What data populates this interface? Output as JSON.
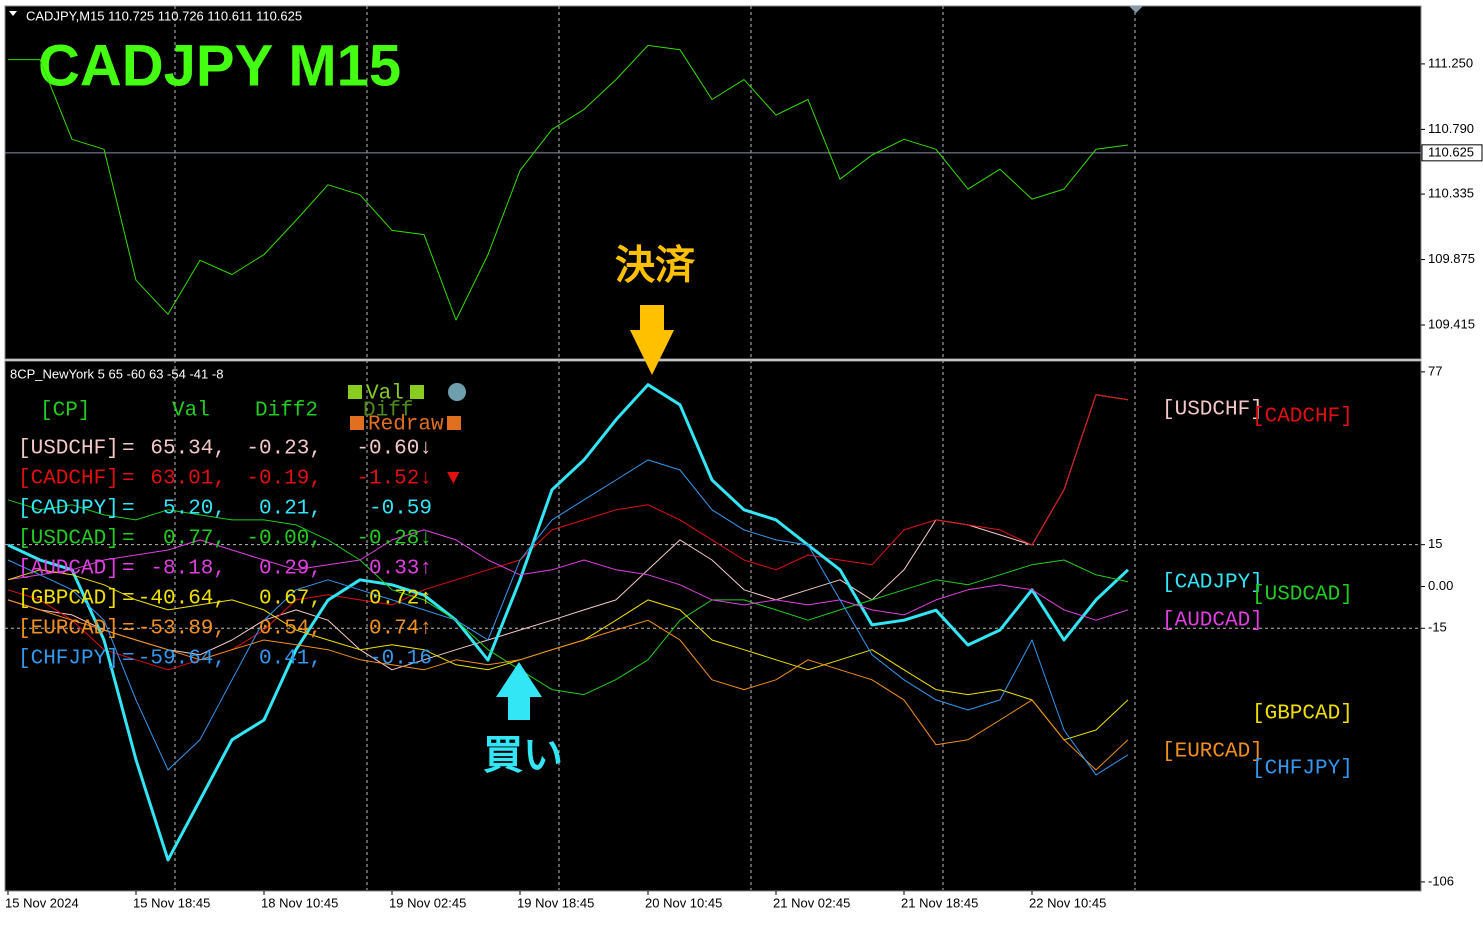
{
  "chart_data": [
    {
      "type": "line",
      "title": "CADJPY,M15  110.725 110.726 110.611 110.625",
      "annotation": "CADJPY  M15",
      "series": [
        {
          "name": "CADJPY",
          "color": "#33dd00",
          "width": 1,
          "values": [
            111.28,
            111.28,
            110.72,
            110.65,
            109.73,
            109.49,
            109.87,
            109.77,
            109.91,
            110.15,
            110.4,
            110.33,
            110.08,
            110.05,
            109.45,
            109.91,
            110.5,
            110.79,
            110.93,
            111.14,
            111.38,
            111.35,
            111.0,
            111.14,
            110.89,
            111.0,
            110.44,
            110.61,
            110.72,
            110.65,
            110.37,
            110.51,
            110.3,
            110.37,
            110.65,
            110.68
          ]
        }
      ],
      "last_price": 110.625,
      "ylim": [
        109.183,
        111.657
      ],
      "yticks": [
        109.415,
        109.875,
        110.335,
        {
          "value": 110.79,
          "label": "110.790"
        },
        {
          "value": 111.25,
          "label": "111.250"
        }
      ]
    },
    {
      "type": "line",
      "title": "8CP_NewYork 5 65 -60 63 -54 -41 -8",
      "categories": [
        "15 Nov 2024",
        null,
        null,
        null,
        "15 Nov 18:45",
        null,
        null,
        null,
        "18 Nov 10:45",
        null,
        null,
        null,
        "19 Nov 02:45",
        null,
        null,
        null,
        "19 Nov 18:45",
        null,
        null,
        null,
        "20 Nov 10:45",
        null,
        null,
        null,
        "21 Nov 02:45",
        null,
        null,
        null,
        "21 Nov 18:45",
        null,
        null,
        null,
        "22 Nov 10:45",
        null,
        null,
        null
      ],
      "ylim": [
        -108.9,
        80.9
      ],
      "yticks": [
        77,
        15,
        {
          "value": 0,
          "label": "0.00"
        },
        -15,
        -106
      ],
      "levels": [
        15,
        -15
      ],
      "series": [
        {
          "name": "[USDCHF]",
          "color": "#f5c8c8",
          "width": 1,
          "values": [
            -4.8,
            -8.4,
            -10.2,
            -15.6,
            -19.2,
            -22.7,
            -24.5,
            -19.2,
            -12.1,
            -8.4,
            -12.1,
            -22.7,
            -29.9,
            -26.3,
            -22.7,
            -19.2,
            -15.6,
            -12.1,
            -8.4,
            -4.8,
            6.0,
            16.7,
            9.5,
            -1.2,
            -4.8,
            -1.2,
            2.4,
            -4.8,
            6.0,
            23.9,
            22.1,
            18.5,
            14.9,
            34.7,
            68.8,
            67.0
          ]
        },
        {
          "name": "[CADCHF]",
          "color": "#e01010",
          "width": 1,
          "values": [
            -1.2,
            -4.8,
            -12.1,
            -22.7,
            -26.3,
            -29.9,
            -26.3,
            -22.7,
            -15.6,
            -4.8,
            -3.0,
            -4.8,
            -6.6,
            -1.2,
            2.4,
            6.0,
            9.5,
            20.3,
            23.9,
            27.5,
            29.3,
            23.9,
            16.7,
            9.5,
            6.0,
            11.3,
            9.5,
            7.8,
            20.3,
            23.9,
            22.1,
            20.3,
            14.9,
            34.7,
            68.8,
            67.0
          ]
        },
        {
          "name": "[CADJPY]",
          "color": "#33e6f5",
          "width": 3,
          "values": [
            14.9,
            9.5,
            6.0,
            -19.2,
            -62.2,
            -98.1,
            -76.6,
            -55.0,
            -47.9,
            -22.7,
            -4.9,
            2.4,
            0.6,
            -3.1,
            -12.1,
            -26.4,
            2.4,
            34.7,
            45.4,
            59.8,
            72.4,
            65.2,
            38.2,
            27.5,
            23.9,
            14.9,
            6.0,
            -13.8,
            -12.1,
            -8.5,
            -21.0,
            -15.6,
            -1.2,
            -19.2,
            -4.8,
            6.0
          ]
        },
        {
          "name": "[USDCAD]",
          "color": "#22cc22",
          "width": 1,
          "values": [
            31.1,
            27.5,
            29.3,
            25.7,
            23.9,
            27.5,
            25.7,
            23.9,
            23.9,
            22.1,
            16.7,
            9.5,
            -1.2,
            -4.8,
            -12.1,
            -22.7,
            -29.9,
            -37.0,
            -38.8,
            -33.4,
            -26.3,
            -12.1,
            -4.8,
            -4.8,
            -8.4,
            -12.1,
            -8.4,
            -4.8,
            -1.2,
            2.4,
            0.6,
            4.2,
            7.8,
            9.5,
            4.2,
            1.7
          ]
        },
        {
          "name": "[AUDCAD]",
          "color": "#e040e0",
          "width": 1,
          "values": [
            2.4,
            4.2,
            6.0,
            9.5,
            11.3,
            13.1,
            16.7,
            13.1,
            9.5,
            6.0,
            7.8,
            9.5,
            16.7,
            20.3,
            16.7,
            9.5,
            4.2,
            6.0,
            9.5,
            6.0,
            4.2,
            0.6,
            -4.8,
            -6.6,
            -4.8,
            -6.6,
            -4.8,
            -8.4,
            -10.2,
            -4.8,
            -1.2,
            0.6,
            -1.2,
            -8.4,
            -12.1,
            -8.4
          ]
        },
        {
          "name": "[GBPCAD]",
          "color": "#f0e000",
          "width": 1,
          "values": [
            2.4,
            6.0,
            4.2,
            0.6,
            -4.8,
            -8.4,
            -6.6,
            -4.8,
            -8.4,
            -15.6,
            -19.2,
            -22.7,
            -20.9,
            -22.7,
            -28.1,
            -29.9,
            -26.3,
            -22.7,
            -19.2,
            -12.1,
            -4.8,
            -8.4,
            -19.2,
            -22.7,
            -26.3,
            -29.9,
            -26.3,
            -22.7,
            -29.9,
            -37.0,
            -38.8,
            -37.0,
            -40.7,
            -55.0,
            -51.5,
            -40.7
          ]
        },
        {
          "name": "[EURCAD]",
          "color": "#f09020",
          "width": 1,
          "values": [
            -4.8,
            -8.4,
            -12.1,
            -15.6,
            -19.2,
            -22.7,
            -26.3,
            -22.7,
            -19.2,
            -20.9,
            -22.7,
            -26.3,
            -28.1,
            -29.9,
            -26.3,
            -28.1,
            -26.3,
            -22.7,
            -19.2,
            -15.6,
            -12.1,
            -19.2,
            -33.5,
            -37.0,
            -33.5,
            -26.3,
            -29.9,
            -33.5,
            -40.7,
            -56.8,
            -55.0,
            -47.9,
            -40.7,
            -55.0,
            -65.8,
            -55.0
          ]
        },
        {
          "name": "[CHFJPY]",
          "color": "#3399ee",
          "width": 1,
          "values": [
            9.5,
            4.2,
            -1.2,
            -12.1,
            -40.7,
            -65.8,
            -55.0,
            -33.5,
            -12.1,
            -1.2,
            2.4,
            -1.2,
            -4.8,
            -8.4,
            -12.1,
            -19.2,
            9.5,
            23.9,
            31.1,
            38.2,
            45.4,
            41.8,
            27.5,
            20.3,
            16.7,
            14.9,
            -4.8,
            -24.5,
            -33.5,
            -40.7,
            -44.3,
            -40.7,
            -19.2,
            -51.5,
            -67.6,
            -60.4
          ]
        }
      ],
      "table": {
        "header": [
          "[CP]",
          "Val",
          "Diff2"
        ],
        "rows": [
          [
            "=",
            "65.34,",
            "-0.23,",
            "-0.60↓"
          ],
          [
            "=",
            "63.01,",
            "-0.19,",
            "-1.52↓",
            "▼"
          ],
          [
            "=",
            "5.20,",
            "0.21,",
            "-0.59"
          ],
          [
            "=",
            "0.77,",
            "-0.00,",
            "-0.28↓"
          ],
          [
            "=",
            "-8.18,",
            "0.29,",
            "0.33↑"
          ],
          [
            "=",
            "-40.64,",
            "0.67,",
            "0.72↑"
          ],
          [
            "=",
            "-53.89,",
            "0.54,",
            "0.74↑"
          ],
          [
            "=",
            "-59.64,",
            "0.41,",
            "-0.16"
          ]
        ]
      },
      "buttons": [
        "Val",
        "Diff",
        "Redraw"
      ],
      "annotations": [
        "決済",
        "買い"
      ]
    }
  ]
}
